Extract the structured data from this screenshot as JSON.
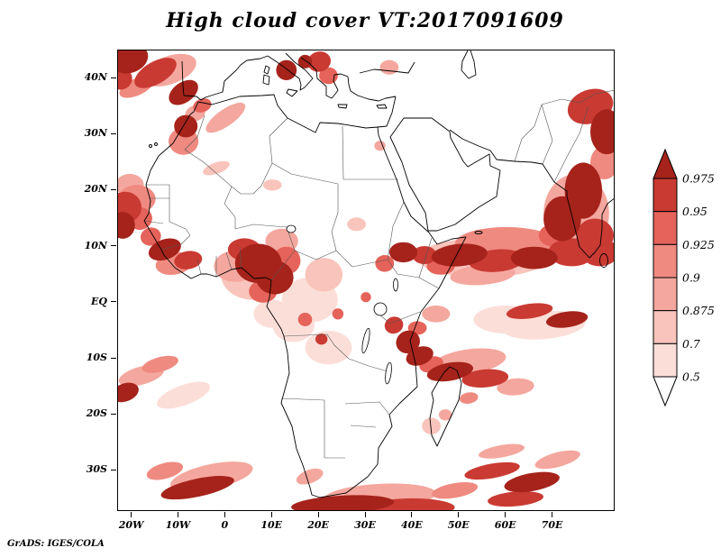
{
  "title": "High cloud cover VT:2017091609",
  "attribution": "GrADS: IGES/COLA",
  "axes": {
    "y_ticks": [
      {
        "v": 40,
        "label": "40N"
      },
      {
        "v": 30,
        "label": "30N"
      },
      {
        "v": 20,
        "label": "20N"
      },
      {
        "v": 10,
        "label": "10N"
      },
      {
        "v": 0,
        "label": "EQ"
      },
      {
        "v": -10,
        "label": "10S"
      },
      {
        "v": -20,
        "label": "20S"
      },
      {
        "v": -30,
        "label": "30S"
      }
    ],
    "x_ticks": [
      {
        "v": -20,
        "label": "20W"
      },
      {
        "v": -10,
        "label": "10W"
      },
      {
        "v": 0,
        "label": "0"
      },
      {
        "v": 10,
        "label": "10E"
      },
      {
        "v": 20,
        "label": "20E"
      },
      {
        "v": 30,
        "label": "30E"
      },
      {
        "v": 40,
        "label": "40E"
      },
      {
        "v": 50,
        "label": "50E"
      },
      {
        "v": 60,
        "label": "60E"
      },
      {
        "v": 70,
        "label": "70E"
      }
    ]
  },
  "colorbar": {
    "labels": [
      "0.975",
      "0.95",
      "0.925",
      "0.9",
      "0.875",
      "0.7",
      "0.5"
    ],
    "colors_top_down": [
      "#a5231b",
      "#c93a32",
      "#e5635a",
      "#ef8a80",
      "#f4a79e",
      "#f9c4bc",
      "#fcded8",
      "#ffffff"
    ]
  },
  "chart_data": {
    "type": "heatmap",
    "title": "High cloud cover VT:2017091609",
    "variable": "High cloud cover",
    "valid_time": "2017091609",
    "lon_range": [
      -23,
      83
    ],
    "lat_range": [
      -37,
      45
    ],
    "levels": [
      0.5,
      0.7,
      0.875,
      0.9,
      0.925,
      0.95,
      0.975
    ],
    "palette_light_to_dark": [
      "#fcded8",
      "#f9c4bc",
      "#f4a79e",
      "#ef8a80",
      "#e5635a",
      "#c93a32",
      "#a5231b"
    ],
    "regions_format": [
      "lon",
      "lat",
      "rx_deg",
      "ry_deg",
      "rot_deg",
      "level_index"
    ],
    "regions": [
      [
        -20.5,
        43.5,
        4,
        2.5,
        -20,
        6
      ],
      [
        -22.5,
        40,
        2.5,
        2,
        0,
        5
      ],
      [
        -15,
        41,
        5,
        2,
        -30,
        5
      ],
      [
        -19,
        38.5,
        4,
        1.5,
        -25,
        3
      ],
      [
        -12,
        41.5,
        6,
        2.5,
        -20,
        2
      ],
      [
        -9,
        37.5,
        3.5,
        1.8,
        -35,
        6
      ],
      [
        -5,
        35.2,
        2,
        1.2,
        -20,
        4
      ],
      [
        0,
        33,
        5,
        1.5,
        -35,
        2
      ],
      [
        13,
        41.5,
        2.2,
        1.8,
        0,
        6
      ],
      [
        17,
        43,
        1.5,
        1.2,
        0,
        6
      ],
      [
        20,
        43,
        2.5,
        1.8,
        -15,
        5
      ],
      [
        22,
        40.5,
        2,
        1.5,
        0,
        4
      ],
      [
        35,
        42,
        2,
        1.3,
        0,
        2
      ],
      [
        -8.5,
        31.5,
        2.5,
        2,
        0,
        6
      ],
      [
        -9,
        28.8,
        3.2,
        2.4,
        0,
        3
      ],
      [
        -6.5,
        33.8,
        2.2,
        1.4,
        -20,
        2
      ],
      [
        -20.5,
        21,
        3,
        2,
        0,
        2
      ],
      [
        -19,
        18.5,
        4,
        2.5,
        0,
        3
      ],
      [
        -21.5,
        17,
        3.5,
        2.8,
        0,
        5
      ],
      [
        -22,
        13.8,
        2.6,
        2.4,
        0,
        6
      ],
      [
        -18.3,
        15,
        2.6,
        2,
        -10,
        4
      ],
      [
        -13,
        9.5,
        3.6,
        1.8,
        -20,
        6
      ],
      [
        -8,
        7.6,
        3,
        1.6,
        -10,
        5
      ],
      [
        -16,
        11.8,
        2.2,
        1.6,
        -15,
        4
      ],
      [
        -11,
        7,
        4,
        2,
        -10,
        3
      ],
      [
        -2,
        24,
        3,
        1,
        -20,
        1
      ],
      [
        10,
        21,
        2,
        1,
        0,
        1
      ],
      [
        28,
        14,
        2,
        1.2,
        0,
        1
      ],
      [
        6,
        5,
        7,
        4.5,
        0,
        1
      ],
      [
        2,
        6.5,
        4.5,
        2.8,
        0,
        2
      ],
      [
        12,
        11,
        3.5,
        2.2,
        0,
        2
      ],
      [
        7,
        7,
        5,
        3.5,
        0,
        6
      ],
      [
        10.5,
        4.5,
        4,
        3,
        0,
        6
      ],
      [
        4,
        9.5,
        3.5,
        2,
        0,
        5
      ],
      [
        13,
        7.5,
        3,
        2.5,
        0,
        4
      ],
      [
        8,
        2,
        3,
        2,
        0,
        4
      ],
      [
        18,
        0.5,
        6,
        4,
        0,
        0
      ],
      [
        14.5,
        -4,
        4.5,
        3,
        0,
        0
      ],
      [
        21,
        5,
        4,
        3,
        0,
        1
      ],
      [
        22,
        -8,
        5,
        3,
        0,
        0
      ],
      [
        10,
        -2,
        4,
        2.5,
        0,
        0
      ],
      [
        17,
        -3,
        1.5,
        1.2,
        0,
        4
      ],
      [
        20.5,
        -6.5,
        1.3,
        1,
        0,
        5
      ],
      [
        24,
        -2,
        1.2,
        1,
        0,
        4
      ],
      [
        38,
        9,
        3,
        1.8,
        0,
        6
      ],
      [
        34,
        7,
        2,
        1.5,
        0,
        4
      ],
      [
        42.5,
        8.5,
        2.6,
        1.6,
        0,
        5
      ],
      [
        33,
        -1,
        1.3,
        1,
        0,
        5
      ],
      [
        30,
        1,
        1.1,
        0.9,
        0,
        4
      ],
      [
        55,
        8,
        14,
        3.5,
        0,
        1
      ],
      [
        60,
        10.5,
        11,
        3,
        0,
        3
      ],
      [
        55,
        5,
        7,
        1.8,
        -5,
        2
      ],
      [
        46,
        6.5,
        3,
        1.5,
        0,
        4
      ],
      [
        50,
        8.5,
        6,
        2,
        -5,
        6
      ],
      [
        58,
        7.5,
        6,
        2,
        -5,
        5
      ],
      [
        66,
        8,
        5,
        2,
        0,
        6
      ],
      [
        74,
        9,
        5,
        2.5,
        0,
        5
      ],
      [
        80,
        9,
        4,
        2.5,
        0,
        5
      ],
      [
        75,
        16,
        7,
        7,
        0,
        2
      ],
      [
        72,
        15,
        4,
        4,
        0,
        6
      ],
      [
        76.5,
        20,
        4,
        5,
        0,
        6
      ],
      [
        79,
        12,
        4,
        3,
        0,
        5
      ],
      [
        70,
        12,
        3,
        2,
        0,
        4
      ],
      [
        81,
        25,
        3,
        3,
        0,
        3
      ],
      [
        78,
        35,
        5,
        3,
        -20,
        5
      ],
      [
        81.5,
        30.5,
        3.5,
        4,
        0,
        6
      ],
      [
        68,
        -4,
        9,
        2.5,
        -5,
        0
      ],
      [
        60,
        -3,
        7,
        2.5,
        0,
        0
      ],
      [
        65,
        -1.5,
        5,
        1.3,
        -8,
        5
      ],
      [
        73,
        -3,
        4.5,
        1.4,
        -8,
        6
      ],
      [
        45,
        -2,
        3,
        1.5,
        0,
        2
      ],
      [
        41,
        -4.5,
        2,
        1.2,
        0,
        4
      ],
      [
        36,
        -4,
        2,
        1.5,
        -20,
        5
      ],
      [
        39,
        -7,
        2.6,
        2,
        -30,
        6
      ],
      [
        41.5,
        -9.5,
        3,
        1.6,
        -20,
        6
      ],
      [
        44,
        -11,
        2.6,
        1.4,
        -15,
        4
      ],
      [
        52,
        -10.5,
        8,
        2.2,
        -8,
        2
      ],
      [
        48,
        -12.3,
        5,
        1.6,
        -10,
        6
      ],
      [
        55.5,
        -13.5,
        5,
        1.6,
        -5,
        5
      ],
      [
        62,
        -15,
        4,
        1.5,
        -5,
        2
      ],
      [
        52,
        -17,
        2,
        1,
        -10,
        3
      ],
      [
        47,
        -20,
        1.4,
        1,
        0,
        2
      ],
      [
        44,
        -22,
        2,
        1.5,
        0,
        1
      ],
      [
        -18,
        -13,
        5,
        1.6,
        -15,
        2
      ],
      [
        -21.5,
        -16,
        3,
        1.6,
        -20,
        6
      ],
      [
        -14,
        -11,
        4,
        1.3,
        -15,
        3
      ],
      [
        -9,
        -16.5,
        6,
        1.8,
        -20,
        0
      ],
      [
        -13,
        -30,
        4,
        1.4,
        -15,
        3
      ],
      [
        18,
        -31,
        3,
        1.2,
        -20,
        2
      ],
      [
        -6,
        -33,
        8,
        1.6,
        -12,
        6
      ],
      [
        -3,
        -31,
        9,
        2.2,
        -12,
        2
      ],
      [
        33,
        -34.5,
        12,
        2.2,
        -3,
        2
      ],
      [
        25,
        -36,
        11,
        1.6,
        -3,
        6
      ],
      [
        40,
        -36.5,
        9,
        1.6,
        0,
        5
      ],
      [
        59,
        -26.5,
        5,
        1.1,
        -10,
        2
      ],
      [
        71,
        -28,
        5,
        1.3,
        -15,
        2
      ],
      [
        57,
        -30,
        6,
        1.3,
        -10,
        5
      ],
      [
        65.5,
        -32,
        6,
        1.6,
        -10,
        6
      ],
      [
        49,
        -33.5,
        5,
        1.3,
        -10,
        3
      ],
      [
        62,
        -35,
        6,
        1.3,
        -5,
        5
      ],
      [
        33,
        28,
        1.2,
        0.9,
        0,
        2
      ]
    ]
  }
}
